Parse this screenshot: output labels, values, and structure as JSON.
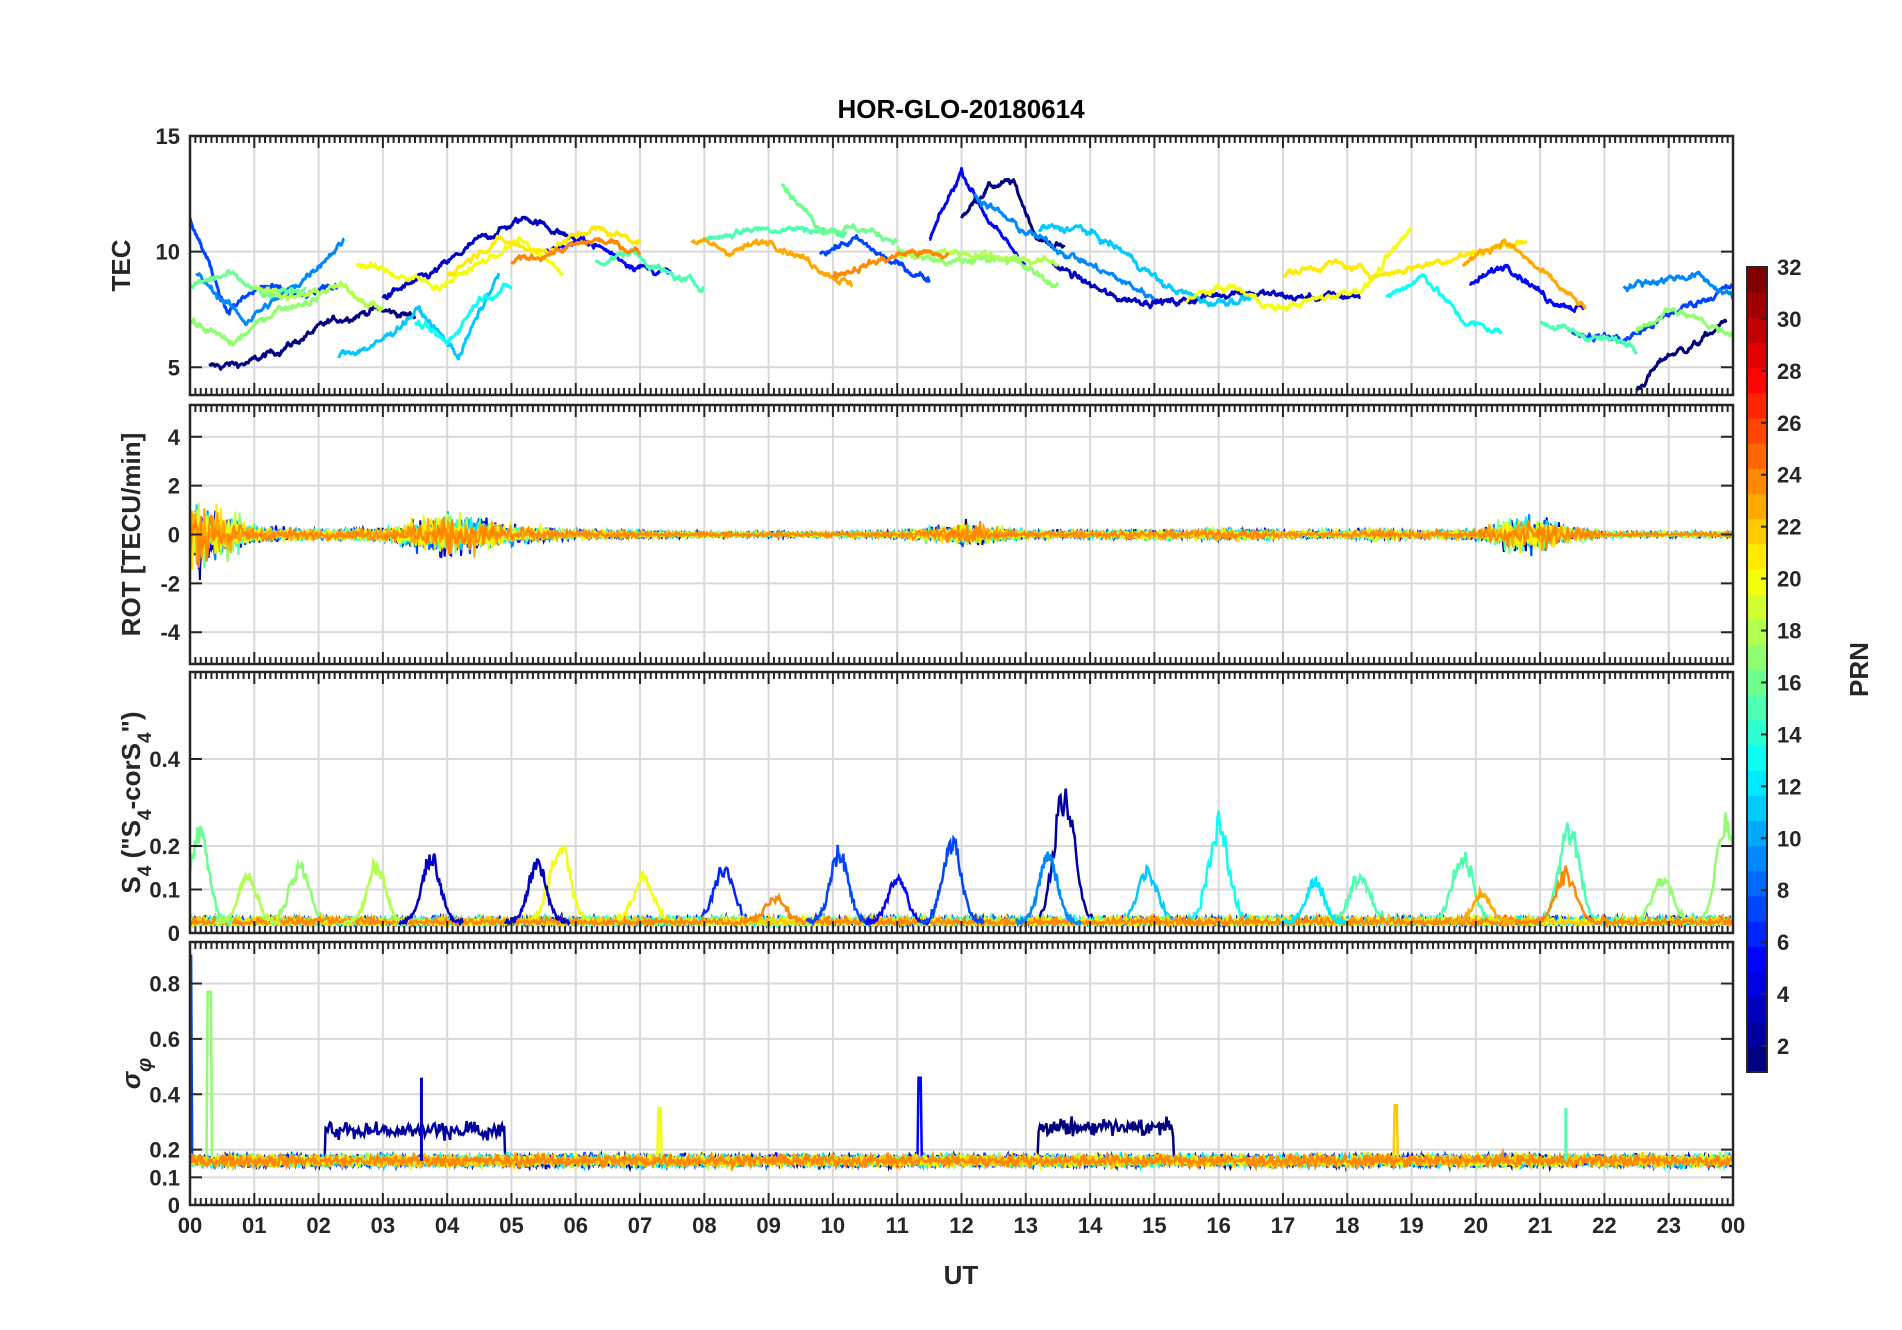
{
  "figure": {
    "title": "HOR-GLO-20180614",
    "xlabel": "UT",
    "x_ticks": [
      "00",
      "01",
      "02",
      "03",
      "04",
      "05",
      "06",
      "07",
      "08",
      "09",
      "10",
      "11",
      "12",
      "13",
      "14",
      "15",
      "16",
      "17",
      "18",
      "19",
      "20",
      "21",
      "22",
      "23",
      "00"
    ]
  },
  "colorbar": {
    "label": "PRN",
    "range": [
      1,
      32
    ],
    "ticks": [
      "2",
      "4",
      "6",
      "8",
      "10",
      "12",
      "14",
      "16",
      "18",
      "20",
      "22",
      "24",
      "26",
      "28",
      "30",
      "32"
    ],
    "colormap": "jet"
  },
  "chart_data": [
    {
      "type": "line",
      "panel": "TEC",
      "ylabel": "TEC",
      "ylim": [
        3.8,
        15
      ],
      "y_ticks": [
        "5",
        "10",
        "15"
      ],
      "x_range_hours": [
        0,
        24
      ],
      "series": [
        {
          "prn": 1,
          "segments": [
            {
              "t0": 0.3,
              "t1": 3.5,
              "v": [
                5.0,
                5.2,
                6.0,
                7.0,
                7.5,
                7.2
              ]
            },
            {
              "t0": 12.0,
              "t1": 13.6,
              "v": [
                11.5,
                12.8,
                13.0,
                10.5,
                10.2
              ]
            },
            {
              "t0": 22.5,
              "t1": 23.9,
              "v": [
                4.0,
                5.5,
                6.0,
                7.0
              ]
            }
          ]
        },
        {
          "prn": 3,
          "segments": [
            {
              "t0": 3.0,
              "t1": 6.0,
              "v": [
                8.0,
                9.0,
                10.5,
                11.5,
                10.5
              ]
            },
            {
              "t0": 13.4,
              "t1": 18.2,
              "v": [
                9.5,
                8.0,
                7.8,
                8.3,
                8.0,
                8.1
              ]
            }
          ]
        },
        {
          "prn": 5,
          "segments": [
            {
              "t0": 5.5,
              "t1": 7.5,
              "v": [
                10.0,
                10.5,
                9.5,
                9.0
              ]
            },
            {
              "t0": 11.5,
              "t1": 13.0,
              "v": [
                10.5,
                13.5,
                11.0,
                9.5
              ]
            },
            {
              "t0": 19.9,
              "t1": 21.7,
              "v": [
                8.5,
                9.5,
                8.0,
                7.5
              ]
            }
          ]
        },
        {
          "prn": 7,
          "segments": [
            {
              "t0": 0.0,
              "t1": 2.3,
              "v": [
                11.5,
                7.5,
                8.5,
                8.0,
                8.5
              ]
            },
            {
              "t0": 9.8,
              "t1": 11.5,
              "v": [
                10.0,
                10.5,
                9.5,
                8.8
              ]
            },
            {
              "t0": 21.5,
              "t1": 24.0,
              "v": [
                6.5,
                6.2,
                7.5,
                8.5
              ]
            }
          ]
        },
        {
          "prn": 9,
          "segments": [
            {
              "t0": 0.1,
              "t1": 2.4,
              "v": [
                9.0,
                7.0,
                8.5,
                10.5
              ]
            },
            {
              "t0": 12.2,
              "t1": 15.0,
              "v": [
                12.5,
                11.0,
                10.0,
                9.0,
                8.0
              ]
            },
            {
              "t0": 22.3,
              "t1": 24.0,
              "v": [
                8.5,
                8.8,
                9.0,
                8.0
              ]
            }
          ]
        },
        {
          "prn": 11,
          "segments": [
            {
              "t0": 2.3,
              "t1": 4.8,
              "v": [
                5.5,
                6.0,
                7.5,
                5.5,
                9.0
              ]
            },
            {
              "t0": 13.2,
              "t1": 16.5,
              "v": [
                11.0,
                11.0,
                10.0,
                8.5,
                7.8,
                8.0
              ]
            }
          ]
        },
        {
          "prn": 13,
          "segments": [
            {
              "t0": 3.5,
              "t1": 5.0,
              "v": [
                7.0,
                6.0,
                8.0,
                8.5
              ]
            },
            {
              "t0": 18.6,
              "t1": 20.4,
              "v": [
                8.0,
                9.0,
                7.0,
                6.5
              ]
            }
          ]
        },
        {
          "prn": 15,
          "segments": [
            {
              "t0": 6.3,
              "t1": 8.0,
              "v": [
                9.5,
                10.0,
                9.0,
                8.5
              ]
            },
            {
              "t0": 8.0,
              "t1": 10.2,
              "v": [
                10.5,
                11.0,
                11.0,
                10.8
              ]
            },
            {
              "t0": 21.0,
              "t1": 22.5,
              "v": [
                7.0,
                6.5,
                6.2,
                6.0
              ]
            }
          ]
        },
        {
          "prn": 16,
          "segments": [
            {
              "t0": 9.2,
              "t1": 11.0,
              "v": [
                13.0,
                11.0,
                11.0,
                10.5
              ]
            },
            {
              "t0": 0.0,
              "t1": 1.8,
              "v": [
                8.5,
                9.0,
                8.0,
                8.5
              ]
            }
          ]
        },
        {
          "prn": 17,
          "segments": [
            {
              "t0": 0.0,
              "t1": 2.0,
              "v": [
                7.0,
                6.0,
                7.5,
                8.0
              ]
            },
            {
              "t0": 11.0,
              "t1": 13.5,
              "v": [
                10.0,
                9.5,
                9.8,
                8.5
              ]
            },
            {
              "t0": 22.5,
              "t1": 24.0,
              "v": [
                6.5,
                7.5,
                7.0,
                6.5
              ]
            }
          ]
        },
        {
          "prn": 18,
          "segments": [
            {
              "t0": 1.0,
              "t1": 3.0,
              "v": [
                8.5,
                8.0,
                8.5,
                7.5
              ]
            },
            {
              "t0": 11.0,
              "t1": 13.5,
              "v": [
                9.8,
                10.0,
                9.8,
                9.5
              ]
            }
          ]
        },
        {
          "prn": 20,
          "segments": [
            {
              "t0": 2.6,
              "t1": 5.8,
              "v": [
                9.5,
                9.0,
                8.5,
                9.5,
                10.5,
                9.0
              ]
            },
            {
              "t0": 15.5,
              "t1": 19.0,
              "v": [
                8.0,
                8.5,
                7.5,
                8.0,
                8.5,
                11.0
              ]
            }
          ]
        },
        {
          "prn": 21,
          "segments": [
            {
              "t0": 4.0,
              "t1": 7.0,
              "v": [
                9.0,
                10.5,
                10.0,
                11.0,
                10.5
              ]
            },
            {
              "t0": 17.0,
              "t1": 20.8,
              "v": [
                9.0,
                9.5,
                9.0,
                9.5,
                10.0,
                10.5
              ]
            }
          ]
        },
        {
          "prn": 23,
          "segments": [
            {
              "t0": 7.8,
              "t1": 10.3,
              "v": [
                10.5,
                10.0,
                10.5,
                9.5,
                8.5
              ]
            },
            {
              "t0": 19.8,
              "t1": 21.7,
              "v": [
                9.5,
                10.5,
                9.0,
                7.5
              ]
            }
          ]
        },
        {
          "prn": 24,
          "segments": [
            {
              "t0": 5.0,
              "t1": 7.0,
              "v": [
                9.5,
                10.0,
                10.5,
                10.0
              ]
            },
            {
              "t0": 10.0,
              "t1": 11.8,
              "v": [
                9.0,
                9.5,
                10.0,
                9.8
              ]
            }
          ]
        }
      ]
    },
    {
      "type": "line",
      "panel": "ROT",
      "ylabel": "ROT [TECU/min]",
      "ylim": [
        -5.3,
        5.3
      ],
      "y_ticks": [
        "-4",
        "-2",
        "0",
        "2",
        "4"
      ],
      "x_range_hours": [
        0,
        24
      ],
      "noise_profile_hours": [
        0,
        0.5,
        1,
        2,
        3,
        3.5,
        4,
        4.5,
        5,
        6,
        7,
        8,
        9,
        10,
        11,
        11.5,
        12,
        12.5,
        13,
        14,
        15,
        15.5,
        16,
        17,
        18,
        18.5,
        19,
        20,
        20.5,
        21,
        21.5,
        22,
        23,
        24
      ],
      "noise_profile_amp": [
        3.0,
        2.0,
        0.6,
        0.4,
        0.6,
        1.2,
        1.6,
        1.4,
        0.8,
        0.4,
        0.3,
        0.2,
        0.2,
        0.2,
        0.25,
        0.6,
        1.0,
        0.6,
        0.3,
        0.3,
        0.4,
        0.3,
        0.5,
        0.3,
        0.3,
        0.5,
        0.3,
        0.4,
        1.2,
        1.4,
        0.6,
        0.2,
        0.2,
        0.2
      ]
    },
    {
      "type": "line",
      "panel": "S4",
      "ylabel": "S4 (\"S4-corS4\")",
      "ylim": [
        0,
        0.6
      ],
      "y_ticks": [
        "0",
        "0.1",
        "0.2",
        "0.4"
      ],
      "x_range_hours": [
        0,
        24
      ],
      "baseline": 0.02,
      "peaks": [
        {
          "t": 0.15,
          "v": 0.24,
          "prn": 16
        },
        {
          "t": 0.9,
          "v": 0.13,
          "prn": 18
        },
        {
          "t": 1.7,
          "v": 0.15,
          "prn": 17
        },
        {
          "t": 2.9,
          "v": 0.16,
          "prn": 18
        },
        {
          "t": 3.75,
          "v": 0.18,
          "prn": 3
        },
        {
          "t": 5.4,
          "v": 0.16,
          "prn": 3
        },
        {
          "t": 5.75,
          "v": 0.22,
          "prn": 20
        },
        {
          "t": 7.05,
          "v": 0.13,
          "prn": 20
        },
        {
          "t": 8.3,
          "v": 0.15,
          "prn": 6
        },
        {
          "t": 9.1,
          "v": 0.08,
          "prn": 24
        },
        {
          "t": 10.1,
          "v": 0.19,
          "prn": 7
        },
        {
          "t": 11.0,
          "v": 0.13,
          "prn": 5
        },
        {
          "t": 11.85,
          "v": 0.22,
          "prn": 7
        },
        {
          "t": 13.35,
          "v": 0.18,
          "prn": 9
        },
        {
          "t": 13.6,
          "v": 0.34,
          "prn": 2
        },
        {
          "t": 14.9,
          "v": 0.14,
          "prn": 11
        },
        {
          "t": 16.0,
          "v": 0.26,
          "prn": 13
        },
        {
          "t": 17.5,
          "v": 0.12,
          "prn": 12
        },
        {
          "t": 18.2,
          "v": 0.14,
          "prn": 15
        },
        {
          "t": 19.8,
          "v": 0.19,
          "prn": 15
        },
        {
          "t": 20.1,
          "v": 0.09,
          "prn": 23
        },
        {
          "t": 21.4,
          "v": 0.14,
          "prn": 24
        },
        {
          "t": 21.45,
          "v": 0.26,
          "prn": 15
        },
        {
          "t": 22.9,
          "v": 0.13,
          "prn": 17
        },
        {
          "t": 23.9,
          "v": 0.26,
          "prn": 17
        }
      ]
    },
    {
      "type": "line",
      "panel": "sigma_phi",
      "ylabel": "σφ",
      "ylim": [
        0,
        0.95
      ],
      "y_ticks": [
        "0",
        "0.1",
        "0.2",
        "0.4",
        "0.6",
        "0.8"
      ],
      "x_range_hours": [
        0,
        24
      ],
      "baseline": 0.16,
      "bands": [
        {
          "t0": 2.1,
          "t1": 4.9,
          "v": 0.27,
          "prn": 2
        },
        {
          "t0": 13.2,
          "t1": 15.3,
          "v": 0.28,
          "prn": 1
        }
      ],
      "spikes": [
        {
          "t": 0.0,
          "v": 0.9,
          "prn": 7
        },
        {
          "t": 0.3,
          "v": 0.77,
          "prn": 17
        },
        {
          "t": 3.6,
          "v": 0.46,
          "prn": 3
        },
        {
          "t": 7.3,
          "v": 0.35,
          "prn": 20
        },
        {
          "t": 11.35,
          "v": 0.46,
          "prn": 5
        },
        {
          "t": 18.75,
          "v": 0.36,
          "prn": 22
        },
        {
          "t": 21.4,
          "v": 0.35,
          "prn": 15
        }
      ]
    }
  ]
}
